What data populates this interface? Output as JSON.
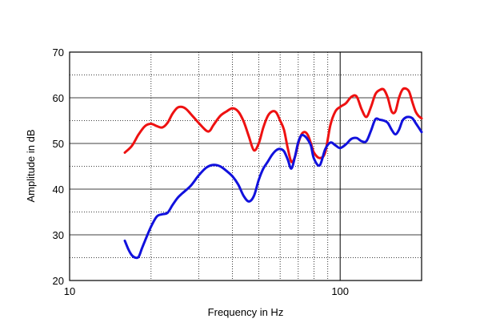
{
  "chart_data": {
    "type": "line",
    "title": "",
    "xlabel": "Frequency in Hz",
    "ylabel": "Amplitude in dB",
    "x_scale": "log",
    "xlim": [
      10,
      200
    ],
    "ylim": [
      20,
      70
    ],
    "x_ticks": [
      10,
      100
    ],
    "x_tick_labels": [
      "10",
      "100"
    ],
    "y_ticks": [
      20,
      30,
      40,
      50,
      60,
      70
    ],
    "y_tick_labels": [
      "20",
      "30",
      "40",
      "50",
      "60",
      "70"
    ],
    "grid": true,
    "legend": "none",
    "series": [
      {
        "color": "#ee1111",
        "x": [
          16,
          17,
          18,
          19,
          20,
          21,
          22,
          23,
          24,
          25,
          26,
          27,
          28,
          30,
          32,
          33,
          34,
          36,
          38,
          40,
          42,
          44,
          46,
          48,
          50,
          52,
          54,
          56,
          58,
          60,
          62,
          64,
          66,
          68,
          70,
          72,
          74,
          76,
          78,
          80,
          84,
          88,
          92,
          96,
          100,
          105,
          110,
          115,
          120,
          125,
          130,
          135,
          140,
          145,
          150,
          155,
          160,
          165,
          170,
          175,
          180,
          185,
          190,
          195,
          200
        ],
        "y": [
          48,
          49.5,
          52,
          53.8,
          54.3,
          53.8,
          53.5,
          54.5,
          56.5,
          57.8,
          58,
          57.5,
          56.5,
          54.5,
          52.8,
          52.8,
          54,
          56,
          57,
          57.7,
          57,
          54.8,
          51.5,
          48.5,
          50,
          53.5,
          56,
          57,
          56.8,
          55,
          53,
          49,
          46,
          47,
          50,
          52,
          52.5,
          51.8,
          50,
          48,
          46.8,
          48,
          54,
          57,
          58,
          58.8,
          60.2,
          60.3,
          57.5,
          55.8,
          58,
          60.8,
          61.7,
          61.8,
          60,
          57,
          57,
          60,
          61.8,
          62,
          61.3,
          59,
          57,
          56,
          55.5
        ]
      },
      {
        "color": "#1111dd",
        "x": [
          16,
          16.5,
          17,
          17.5,
          18,
          18.5,
          19,
          20,
          21,
          22,
          23,
          24,
          25,
          26,
          28,
          30,
          32,
          34,
          36,
          38,
          40,
          42,
          44,
          46,
          48,
          50,
          52,
          54,
          56,
          58,
          60,
          62,
          64,
          66,
          68,
          70,
          72,
          74,
          76,
          78,
          80,
          84,
          88,
          92,
          96,
          100,
          105,
          110,
          115,
          120,
          125,
          130,
          135,
          140,
          145,
          150,
          155,
          160,
          165,
          170,
          175,
          180,
          185,
          190,
          195,
          200
        ],
        "y": [
          28.7,
          26.8,
          25.5,
          25,
          25.2,
          27,
          28.7,
          31.8,
          34,
          34.5,
          34.8,
          36.5,
          38,
          39,
          40.7,
          43,
          44.7,
          45.3,
          45,
          44,
          42.8,
          41,
          38.5,
          37.3,
          38.5,
          42,
          44.5,
          46,
          47.5,
          48.5,
          48.8,
          48.3,
          46.5,
          44.5,
          47,
          50.3,
          51.8,
          51.6,
          50.8,
          49.5,
          46.7,
          45.2,
          48.7,
          50.2,
          49.6,
          49,
          49.8,
          51,
          51.2,
          50.5,
          50.5,
          52.8,
          55.3,
          55.2,
          55,
          54.5,
          53,
          52,
          53,
          55,
          55.7,
          55.8,
          55.5,
          54.5,
          53.5,
          52.5
        ]
      }
    ]
  }
}
